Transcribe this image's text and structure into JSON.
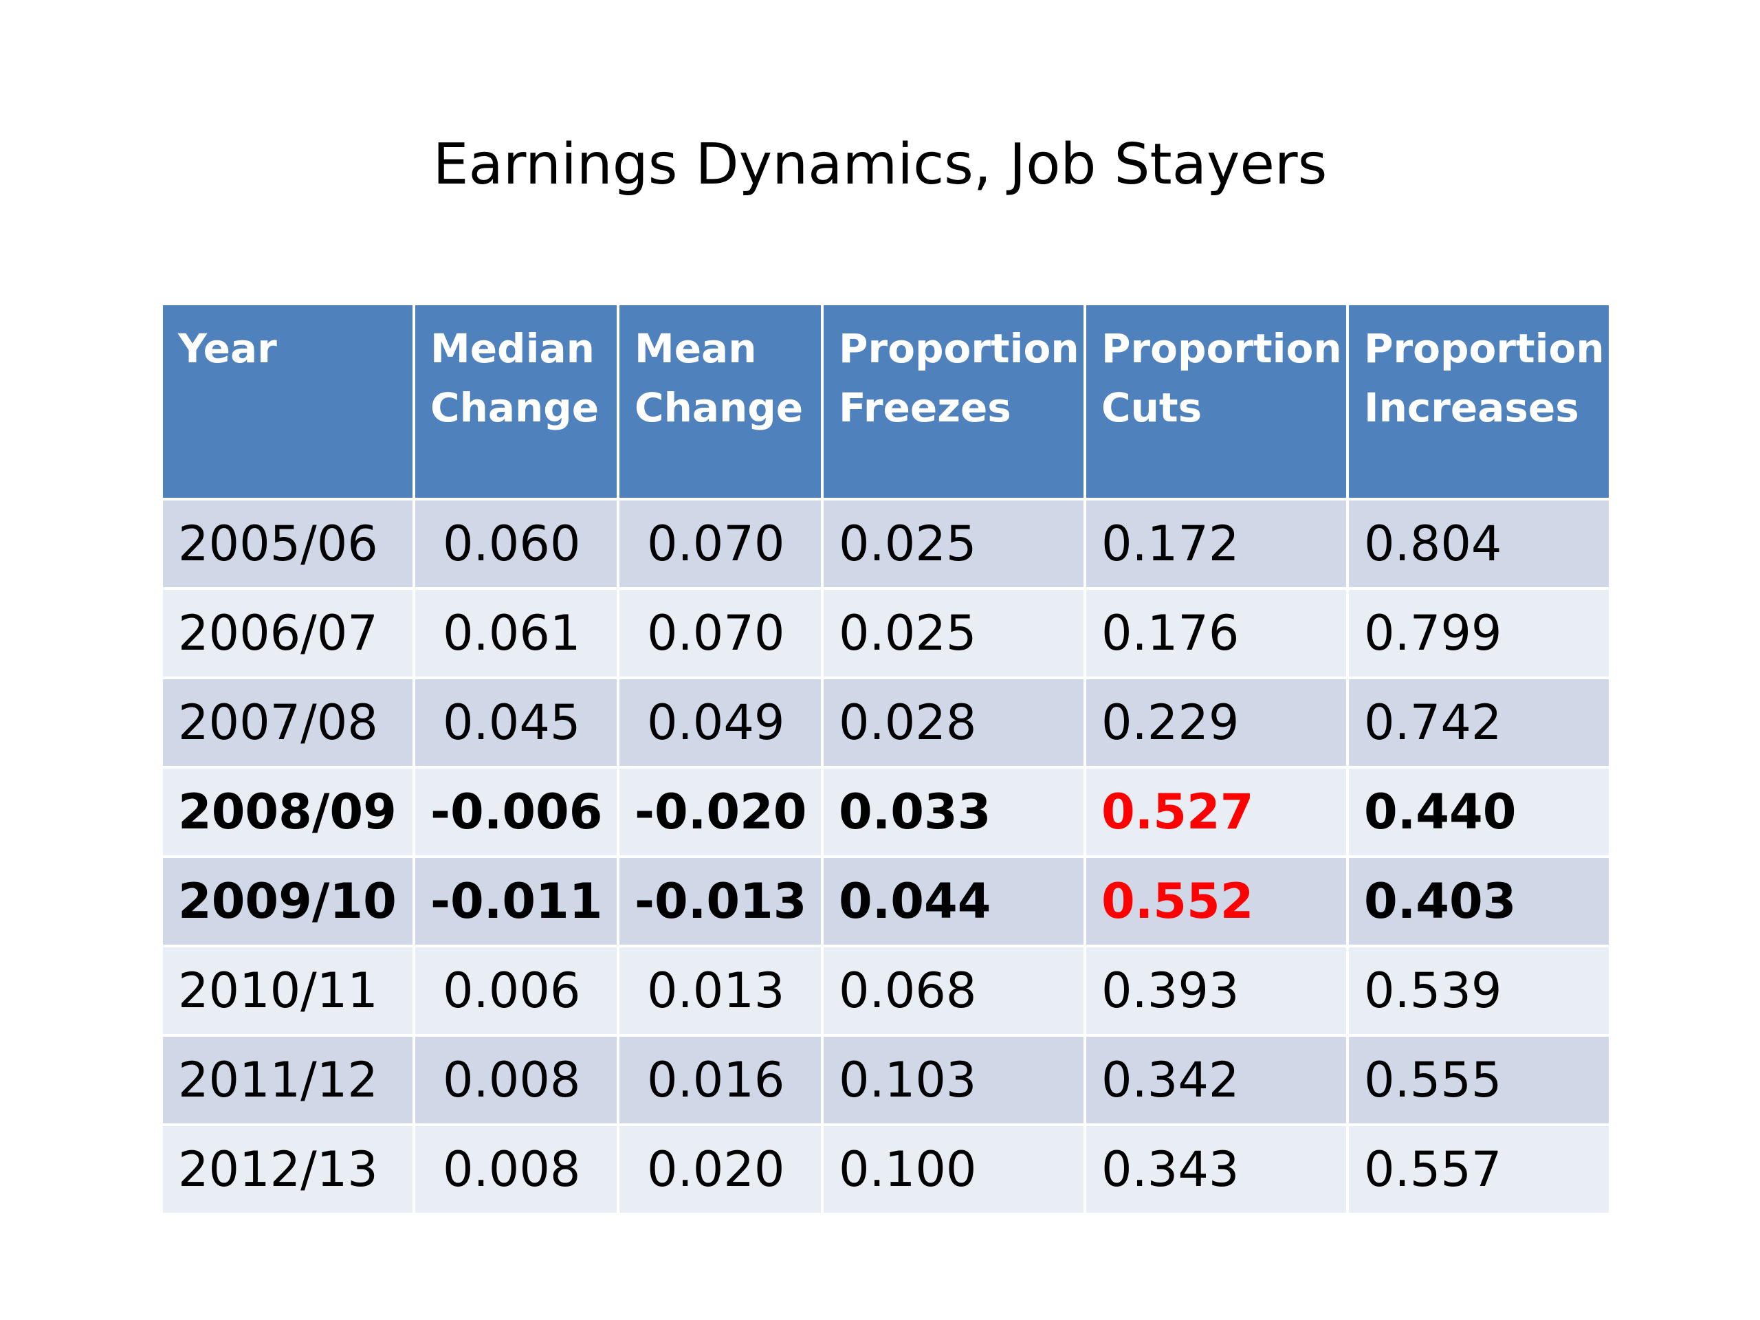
{
  "title": "Earnings Dynamics, Job Stayers",
  "colors": {
    "header_background": "#4f81bd",
    "row_band_dark": "#d0d8e8",
    "row_band_light": "#e9edf4",
    "highlight": "#ff0000"
  },
  "table": {
    "headers": [
      "Year",
      "Median\nChange",
      "Mean\nChange",
      "Proportion\nFreezes",
      "Proportion\nCuts",
      "Proportion\nIncreases"
    ],
    "rows": [
      [
        "2005/06",
        "0.060",
        "0.070",
        "0.025",
        "0.172",
        "0.804"
      ],
      [
        "2006/07",
        "0.061",
        "0.070",
        "0.025",
        "0.176",
        "0.799"
      ],
      [
        "2007/08",
        "0.045",
        "0.049",
        "0.028",
        "0.229",
        "0.742"
      ],
      [
        "2008/09",
        "-0.006",
        "-0.020",
        "0.033",
        "0.527",
        "0.440"
      ],
      [
        "2009/10",
        "-0.011",
        "-0.013",
        "0.044",
        "0.552",
        "0.403"
      ],
      [
        "2010/11",
        "0.006",
        "0.013",
        "0.068",
        "0.393",
        "0.539"
      ],
      [
        "2011/12",
        "0.008",
        "0.016",
        "0.103",
        "0.342",
        "0.555"
      ],
      [
        "2012/13",
        "0.008",
        "0.020",
        "0.100",
        "0.343",
        "0.557"
      ]
    ],
    "bold_rows": [
      3,
      4
    ],
    "highlighted_cells": [
      [
        3,
        4
      ],
      [
        4,
        4
      ]
    ]
  }
}
